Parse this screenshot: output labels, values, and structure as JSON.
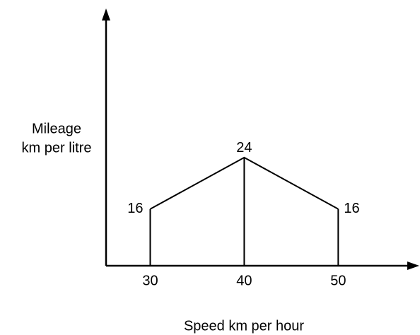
{
  "chart_data": {
    "type": "line",
    "ylabel": [
      "Mileage",
      "km per litre"
    ],
    "xlabel": "Speed km per hour",
    "x": [
      30,
      40,
      50
    ],
    "values": [
      16,
      24,
      16
    ],
    "xticks": [
      30,
      40,
      50
    ],
    "xlim": [
      25.3,
      58.4
    ],
    "ylim": [
      7.2,
      46.8
    ],
    "color": "#000000",
    "drop_lines": true
  }
}
